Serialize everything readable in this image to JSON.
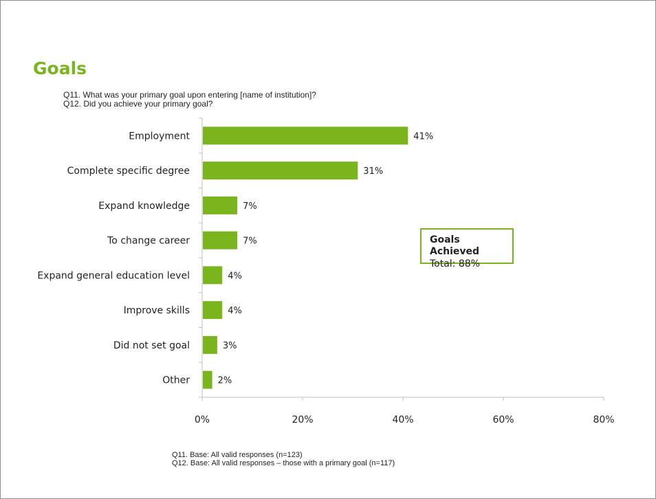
{
  "title": "Goals",
  "questions": [
    "Q11. What was your primary goal upon entering [name of institution]?",
    "Q12. Did you achieve your primary goal?"
  ],
  "callout": {
    "title": "Goals Achieved",
    "total": "Total: 88%"
  },
  "notes": [
    "Q11. Base: All valid responses (n=123)",
    "Q12. Base: All valid responses – those with a primary goal (n=117)"
  ],
  "colors": {
    "accent": "#7ab51d",
    "bar": "#7ab51d",
    "axis": "#bfbfbf"
  },
  "chart_data": {
    "type": "bar",
    "orientation": "horizontal",
    "categories": [
      "Employment",
      "Complete specific degree",
      "Expand knowledge",
      "To change career",
      "Expand general education level",
      "Improve skills",
      "Did not set goal",
      "Other"
    ],
    "values": [
      41,
      31,
      7,
      7,
      4,
      4,
      3,
      2
    ],
    "value_labels": [
      "41%",
      "31%",
      "7%",
      "7%",
      "4%",
      "4%",
      "3%",
      "2%"
    ],
    "xlim": [
      0,
      80
    ],
    "ticks": [
      0,
      20,
      40,
      60,
      80
    ],
    "tick_labels": [
      "0%",
      "20%",
      "40%",
      "60%",
      "80%"
    ],
    "grid": false,
    "legend": "none"
  }
}
